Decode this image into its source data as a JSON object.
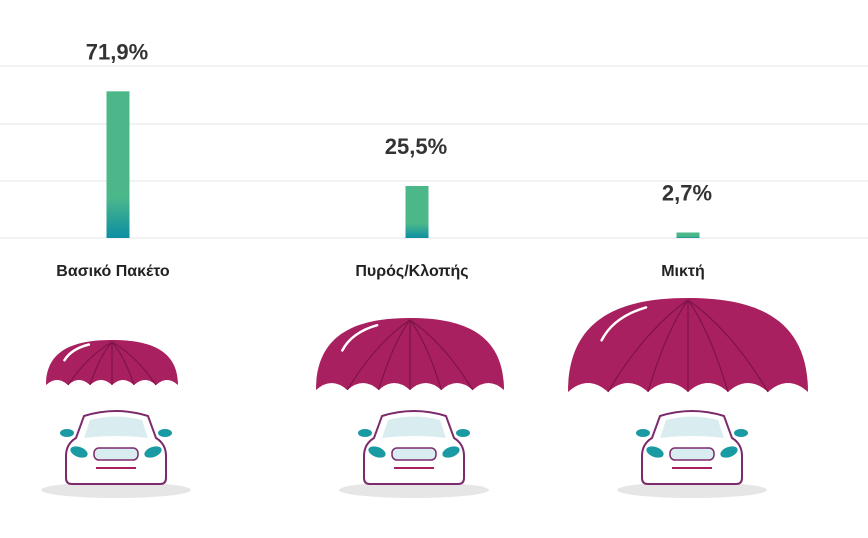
{
  "colors": {
    "bar_top": "#4cb88a",
    "bar_bottom": "#0d8fa3",
    "gridline": "#e4e4e4",
    "umbrella": "#a8205f",
    "umbrella_rib": "#7e1447",
    "car_outline": "#7b2a6b",
    "car_window": "#d9edf1",
    "car_light": "#1a9aa3",
    "shadow": "#e6e6e6",
    "label_text": "#333333"
  },
  "chart_data": {
    "type": "bar",
    "categories": [
      "Βασικό Πακέτο",
      "Πυρός/Κλοπής",
      "Μικτή"
    ],
    "values": [
      71.9,
      25.5,
      2.7
    ],
    "value_labels": [
      "71,9%",
      "25,5%",
      "2,7%"
    ],
    "unit": "%",
    "ylim": [
      0,
      100
    ],
    "grid": true,
    "legend": "none"
  },
  "illustrations": [
    {
      "icon": "umbrella-car-icon",
      "size": "small"
    },
    {
      "icon": "umbrella-car-icon",
      "size": "medium"
    },
    {
      "icon": "umbrella-car-icon",
      "size": "large"
    }
  ]
}
